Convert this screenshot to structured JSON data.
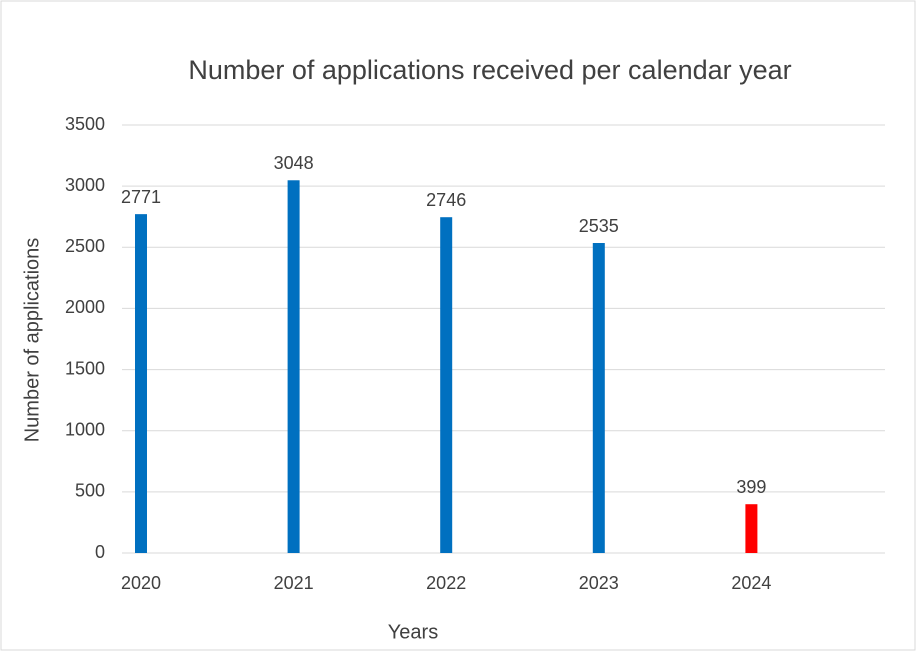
{
  "chart_data": {
    "type": "bar",
    "title": "Number of applications received per calendar year",
    "x_label": "Years",
    "y_label": "Number of applications",
    "categories": [
      "2020",
      "2021",
      "2022",
      "2023",
      "2024"
    ],
    "values": [
      2771,
      3048,
      2746,
      2535,
      399
    ],
    "colors": [
      "#0070c0",
      "#0070c0",
      "#0070c0",
      "#0070c0",
      "#ff0000"
    ],
    "ylim": [
      0,
      3500
    ],
    "yticks": [
      0,
      500,
      1000,
      1500,
      2000,
      2500,
      3000,
      3500
    ],
    "grid": true
  }
}
